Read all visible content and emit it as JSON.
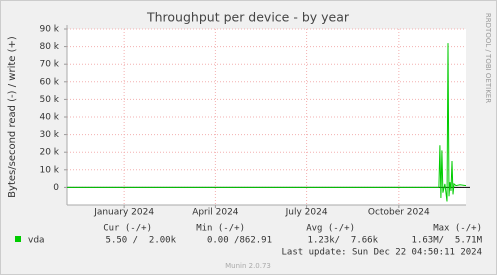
{
  "chart_data": {
    "type": "line",
    "title": "Throughput per device - by year",
    "ylabel": "Bytes/second read (-) / write (+)",
    "side_text": "RRDTOOL / TOBI OETIKER",
    "x": [
      "2023-11-05",
      "2024-11-10",
      "2024-11-11",
      "2024-11-12",
      "2024-11-13",
      "2024-11-14",
      "2024-11-16",
      "2024-11-18",
      "2024-11-19",
      "2024-11-20",
      "2024-11-21",
      "2024-11-22",
      "2024-11-23",
      "2024-11-24",
      "2024-11-25",
      "2024-11-27",
      "2024-12-01",
      "2024-12-07"
    ],
    "series": [
      {
        "name": "vda",
        "color": "#00cc00",
        "values": [
          0,
          0,
          24000,
          -6000,
          21000,
          -3000,
          2000,
          -8000,
          82000,
          -5000,
          3000,
          -2000,
          15000,
          -4000,
          2000,
          1000,
          1500,
          1000
        ]
      }
    ],
    "xlim": [
      "2023-11-05",
      "2024-12-07"
    ],
    "xticks": [
      {
        "value": "2024-01",
        "label": "January 2024"
      },
      {
        "value": "2024-04",
        "label": "April 2024"
      },
      {
        "value": "2024-07",
        "label": "July 2024"
      },
      {
        "value": "2024-10",
        "label": "October 2024"
      }
    ],
    "ylim": [
      -10000,
      90000
    ],
    "yticks": [
      0,
      {
        "value": 10000,
        "label": "10 k"
      },
      {
        "value": 20000,
        "label": "20 k"
      },
      {
        "value": 30000,
        "label": "30 k"
      },
      {
        "value": 40000,
        "label": "40 k"
      },
      {
        "value": 50000,
        "label": "50 k"
      },
      {
        "value": 60000,
        "label": "60 k"
      },
      {
        "value": 70000,
        "label": "70 k"
      },
      {
        "value": 80000,
        "label": "80 k"
      },
      {
        "value": 90000,
        "label": "90 k"
      }
    ],
    "grid": true
  },
  "stats": {
    "headers": [
      "Cur (-/+)",
      "Min (-/+)",
      "Avg (-/+)",
      "Max (-/+)"
    ],
    "row": [
      "5.50 /  2.00k",
      "0.00 /862.91",
      "1.23k/  7.66k",
      "1.63M/  5.71M"
    ]
  },
  "last_update": "Last update: Sun Dec 22 04:50:11 2024",
  "footer": "Munin 2.0.73"
}
